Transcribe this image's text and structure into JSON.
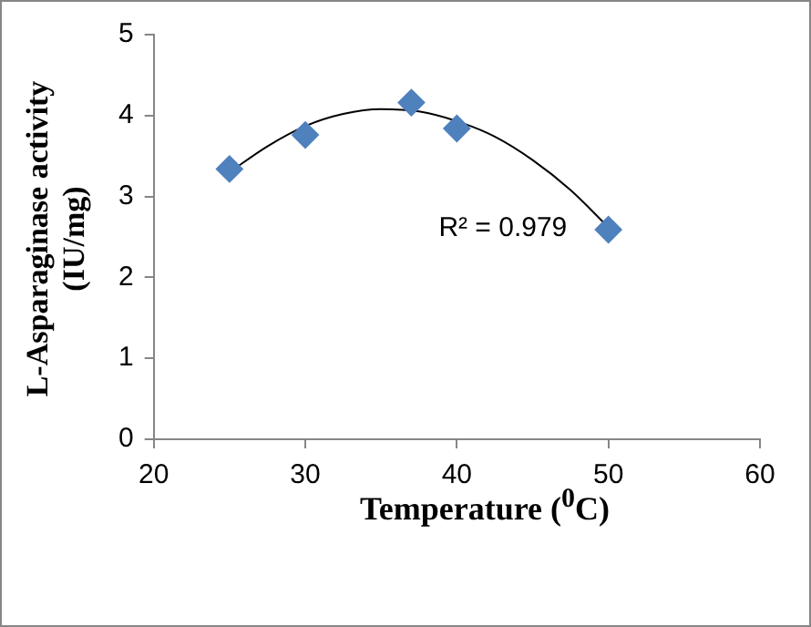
{
  "chart_data": {
    "type": "scatter",
    "xlabel": "Temperature ($^{0}$C)",
    "ylabel": "L-Asparaginase activity (IU/mg)",
    "annotations": [
      "R² = 0.979"
    ],
    "xlim": [
      20,
      60
    ],
    "xticks": [
      20,
      30,
      40,
      50,
      60
    ],
    "ylim": [
      0,
      5
    ],
    "yticks": [
      0,
      1,
      2,
      3,
      4,
      5
    ],
    "grid": false,
    "legend": false,
    "marker": "diamond",
    "series": [
      {
        "type": "scatter",
        "color": "#4f81bd",
        "x": [
          25,
          30,
          37,
          40,
          50
        ],
        "values": [
          3.34,
          3.76,
          4.16,
          3.84,
          2.59
        ]
      },
      {
        "type": "line",
        "color": "#000000",
        "marker": "none",
        "x": [
          25,
          27.5,
          30,
          32.5,
          35,
          37.5,
          40,
          42.5,
          45,
          47.5,
          50
        ],
        "values": [
          3.3,
          3.62,
          3.87,
          4.02,
          4.08,
          4.05,
          3.93,
          3.74,
          3.45,
          3.08,
          2.62
        ]
      }
    ]
  }
}
